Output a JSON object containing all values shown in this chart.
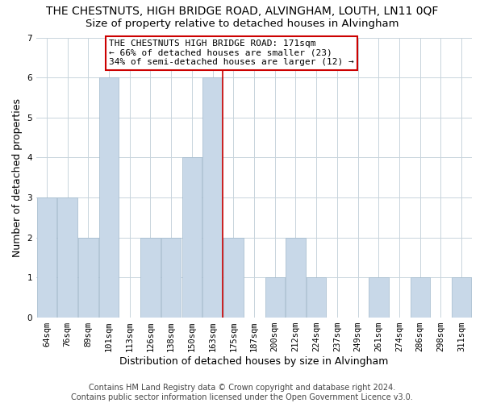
{
  "title": "THE CHESTNUTS, HIGH BRIDGE ROAD, ALVINGHAM, LOUTH, LN11 0QF",
  "subtitle": "Size of property relative to detached houses in Alvingham",
  "xlabel": "Distribution of detached houses by size in Alvingham",
  "ylabel": "Number of detached properties",
  "categories": [
    "64sqm",
    "76sqm",
    "89sqm",
    "101sqm",
    "113sqm",
    "126sqm",
    "138sqm",
    "150sqm",
    "163sqm",
    "175sqm",
    "187sqm",
    "200sqm",
    "212sqm",
    "224sqm",
    "237sqm",
    "249sqm",
    "261sqm",
    "274sqm",
    "286sqm",
    "298sqm",
    "311sqm"
  ],
  "values": [
    3,
    3,
    2,
    6,
    0,
    2,
    2,
    4,
    6,
    2,
    0,
    1,
    2,
    1,
    0,
    0,
    1,
    0,
    1,
    0,
    1
  ],
  "highlight_index": 8,
  "bar_color_normal": "#c8d8e8",
  "highlight_line_color": "#cc0000",
  "ylim": [
    0,
    7
  ],
  "yticks": [
    0,
    1,
    2,
    3,
    4,
    5,
    6,
    7
  ],
  "annotation_text": "THE CHESTNUTS HIGH BRIDGE ROAD: 171sqm\n← 66% of detached houses are smaller (23)\n34% of semi-detached houses are larger (12) →",
  "annotation_box_facecolor": "#ffffff",
  "annotation_box_edgecolor": "#cc0000",
  "footer_line1": "Contains HM Land Registry data © Crown copyright and database right 2024.",
  "footer_line2": "Contains public sector information licensed under the Open Government Licence v3.0.",
  "background_color": "#ffffff",
  "grid_color": "#c8d4dc",
  "title_fontsize": 10,
  "subtitle_fontsize": 9.5,
  "axis_label_fontsize": 9,
  "tick_fontsize": 7.5,
  "annotation_fontsize": 8,
  "footer_fontsize": 7
}
